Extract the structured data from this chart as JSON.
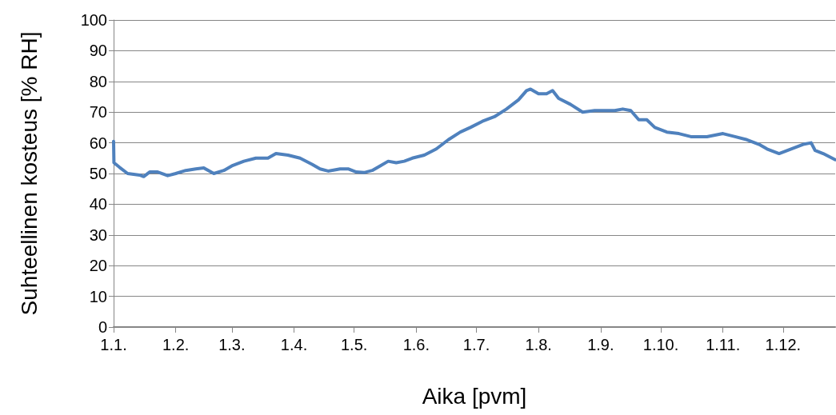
{
  "chart_data": {
    "type": "line",
    "xlabel": "Aika [pvm]",
    "ylabel": "Suhteellinen kosteus [% RH]",
    "x": [
      "--01-01",
      "--01-01T04:00",
      "--01-04",
      "--01-08",
      "--01-14",
      "--01-16",
      "--01-19",
      "--01-23",
      "--01-28",
      "--02-01",
      "--02-06",
      "--02-11",
      "--02-15",
      "--02-20",
      "--02-25",
      "--03-01",
      "--03-07",
      "--03-13",
      "--03-19",
      "--03-23",
      "--03-29",
      "--04-04",
      "--04-10",
      "--04-14",
      "--04-18",
      "--04-24",
      "--04-28",
      "--05-02",
      "--05-06",
      "--05-10",
      "--05-14",
      "--05-18",
      "--05-22",
      "--05-26",
      "--05-30",
      "--06-05",
      "--06-11",
      "--06-17",
      "--06-23",
      "--06-28",
      "--07-04",
      "--07-10",
      "--07-16",
      "--07-22",
      "--07-26",
      "--07-28",
      "--08-01",
      "--08-05",
      "--08-08",
      "--08-11",
      "--08-17",
      "--08-23",
      "--08-29",
      "--09-04",
      "--09-08",
      "--09-12",
      "--09-16",
      "--09-20",
      "--09-24",
      "--09-28",
      "--10-04",
      "--10-10",
      "--10-16",
      "--10-24",
      "--11-01",
      "--11-07",
      "--11-13",
      "--11-19",
      "--11-23",
      "--11-29",
      "--12-05",
      "--12-11",
      "--12-15",
      "--12-17",
      "--12-21",
      "--12-27"
    ],
    "series": [
      {
        "color": "#4f81bd",
        "values": [
          60.5,
          53.5,
          52,
          50,
          49.5,
          49,
          50.5,
          50.5,
          49.3,
          50,
          51,
          51.5,
          51.8,
          50,
          51,
          52.5,
          54,
          55,
          55,
          56.5,
          56,
          55,
          53,
          51.5,
          50.8,
          51.5,
          51.5,
          50.5,
          50.3,
          51,
          52.5,
          54,
          53.5,
          54,
          55,
          56,
          58,
          61,
          63.5,
          65,
          67,
          68.5,
          71,
          74,
          77,
          77.5,
          76,
          76,
          77,
          74.5,
          72.5,
          70,
          70.5,
          70.5,
          70.5,
          71,
          70.5,
          67.5,
          67.5,
          65,
          63.5,
          63,
          62,
          62,
          63,
          62,
          61,
          59.5,
          58,
          56.5,
          58,
          59.5,
          60,
          57.5,
          56.5,
          54.5
        ]
      }
    ],
    "xlim": [
      "--01-01",
      "--12-27"
    ],
    "xticks": [
      {
        "value": "--01-01",
        "label": "1.1."
      },
      {
        "value": "--02-01",
        "label": "1.2."
      },
      {
        "value": "--03-01",
        "label": "1.3."
      },
      {
        "value": "--04-01",
        "label": "1.4."
      },
      {
        "value": "--05-01",
        "label": "1.5."
      },
      {
        "value": "--06-01",
        "label": "1.6."
      },
      {
        "value": "--07-01",
        "label": "1.7."
      },
      {
        "value": "--08-01",
        "label": "1.8."
      },
      {
        "value": "--09-01",
        "label": "1.9."
      },
      {
        "value": "--10-01",
        "label": "1.10."
      },
      {
        "value": "--11-01",
        "label": "1.11."
      },
      {
        "value": "--12-01",
        "label": "1.12."
      }
    ],
    "ylim": [
      0,
      100
    ],
    "yticks": [
      0,
      10,
      20,
      30,
      40,
      50,
      60,
      70,
      80,
      90,
      100
    ],
    "grid": "y",
    "marker": "none",
    "line_style": "solid"
  }
}
